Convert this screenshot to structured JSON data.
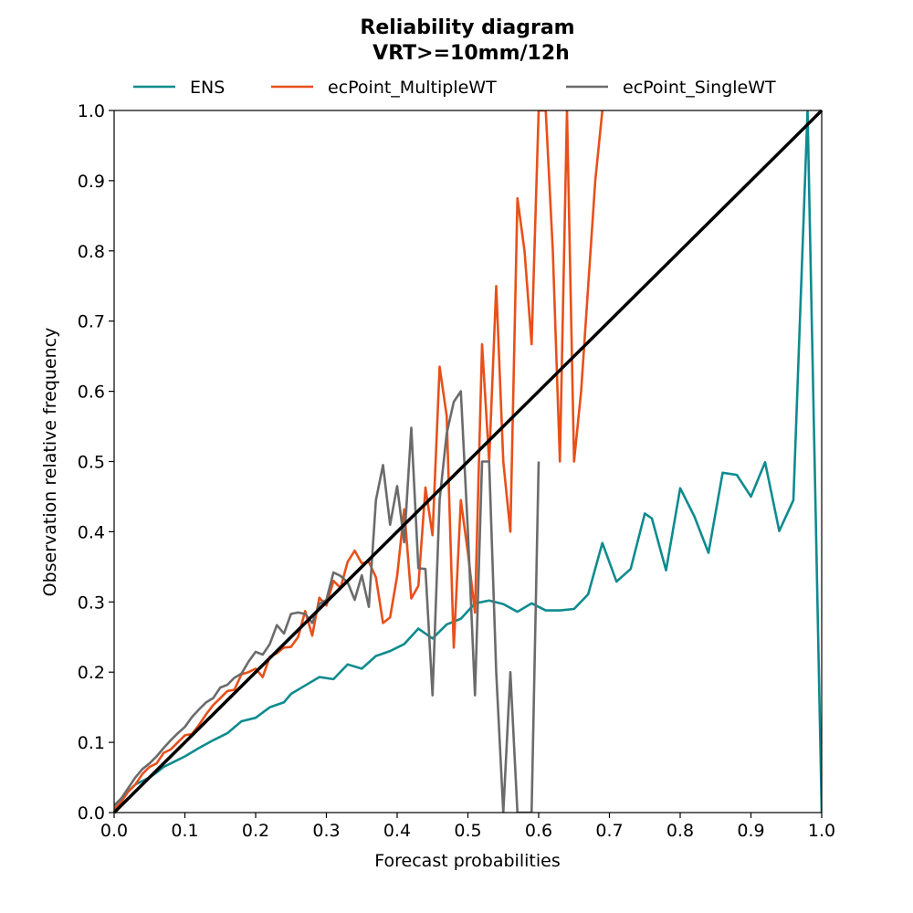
{
  "chart_data": {
    "type": "line",
    "title": "Reliability diagram",
    "subtitle": "VRT>=10mm/12h",
    "xlabel": "Forecast probabilities",
    "ylabel": "Observation relative frequency",
    "xlim": [
      0,
      1
    ],
    "ylim": [
      0,
      1
    ],
    "xticks": [
      "0.0",
      "0.1",
      "0.2",
      "0.3",
      "0.4",
      "0.5",
      "0.6",
      "0.7",
      "0.8",
      "0.9",
      "1.0"
    ],
    "yticks": [
      "0.0",
      "0.1",
      "0.2",
      "0.3",
      "0.4",
      "0.5",
      "0.6",
      "0.7",
      "0.8",
      "0.9",
      "1.0"
    ],
    "grid": false,
    "legend": "top-center",
    "diagonal": {
      "color": "#000000"
    },
    "series": [
      {
        "name": "ENS",
        "color": "#0e8b8f",
        "x": [
          0.0,
          0.01,
          0.02,
          0.03,
          0.04,
          0.05,
          0.06,
          0.07,
          0.08,
          0.09,
          0.1,
          0.12,
          0.14,
          0.16,
          0.18,
          0.2,
          0.22,
          0.24,
          0.25,
          0.27,
          0.29,
          0.31,
          0.33,
          0.35,
          0.37,
          0.39,
          0.41,
          0.43,
          0.45,
          0.47,
          0.49,
          0.51,
          0.53,
          0.55,
          0.57,
          0.59,
          0.61,
          0.63,
          0.65,
          0.67,
          0.69,
          0.71,
          0.73,
          0.75,
          0.76,
          0.78,
          0.8,
          0.82,
          0.84,
          0.86,
          0.88,
          0.9,
          0.92,
          0.94,
          0.96,
          0.98,
          1.0
        ],
        "values": [
          0.01,
          0.02,
          0.03,
          0.04,
          0.045,
          0.05,
          0.057,
          0.065,
          0.07,
          0.075,
          0.08,
          0.092,
          0.103,
          0.113,
          0.13,
          0.135,
          0.15,
          0.157,
          0.169,
          0.181,
          0.193,
          0.19,
          0.211,
          0.205,
          0.223,
          0.23,
          0.24,
          0.262,
          0.248,
          0.268,
          0.276,
          0.298,
          0.302,
          0.297,
          0.286,
          0.298,
          0.288,
          0.288,
          0.29,
          0.311,
          0.384,
          0.329,
          0.347,
          0.426,
          0.419,
          0.345,
          0.462,
          0.422,
          0.37,
          0.484,
          0.481,
          0.45,
          0.499,
          0.401,
          0.445,
          1.0,
          0.0
        ]
      },
      {
        "name": "ecPoint_MultipleWT",
        "color": "#e8501a",
        "x": [
          0.0,
          0.01,
          0.02,
          0.03,
          0.04,
          0.05,
          0.06,
          0.07,
          0.08,
          0.09,
          0.1,
          0.11,
          0.12,
          0.13,
          0.14,
          0.15,
          0.16,
          0.17,
          0.18,
          0.19,
          0.2,
          0.21,
          0.22,
          0.23,
          0.24,
          0.25,
          0.26,
          0.27,
          0.28,
          0.29,
          0.3,
          0.31,
          0.32,
          0.33,
          0.34,
          0.35,
          0.36,
          0.37,
          0.38,
          0.39,
          0.4,
          0.41,
          0.42,
          0.43,
          0.44,
          0.45,
          0.46,
          0.47,
          0.48,
          0.49,
          0.5,
          0.51,
          0.52,
          0.53,
          0.54,
          0.55,
          0.56,
          0.57,
          0.58,
          0.59,
          0.6,
          0.61,
          0.62,
          0.63,
          0.64,
          0.65,
          0.66,
          0.67,
          0.68,
          0.69
        ],
        "values": [
          0.005,
          0.015,
          0.03,
          0.04,
          0.055,
          0.065,
          0.07,
          0.085,
          0.09,
          0.1,
          0.11,
          0.112,
          0.125,
          0.14,
          0.153,
          0.163,
          0.173,
          0.175,
          0.197,
          0.2,
          0.205,
          0.193,
          0.222,
          0.227,
          0.235,
          0.236,
          0.25,
          0.287,
          0.252,
          0.306,
          0.295,
          0.33,
          0.32,
          0.357,
          0.373,
          0.355,
          0.357,
          0.335,
          0.27,
          0.278,
          0.337,
          0.432,
          0.305,
          0.323,
          0.463,
          0.395,
          0.635,
          0.565,
          0.235,
          0.445,
          0.37,
          0.285,
          0.667,
          0.5,
          0.75,
          0.5,
          0.4,
          0.875,
          0.8,
          0.667,
          1.0,
          1.0,
          0.8,
          0.5,
          1.0,
          0.5,
          0.6,
          0.75,
          0.9,
          1.0
        ]
      },
      {
        "name": "ecPoint_SingleWT",
        "color": "#6b6b6b",
        "x": [
          0.0,
          0.01,
          0.02,
          0.03,
          0.04,
          0.05,
          0.06,
          0.07,
          0.08,
          0.09,
          0.1,
          0.11,
          0.12,
          0.13,
          0.14,
          0.15,
          0.16,
          0.17,
          0.18,
          0.19,
          0.2,
          0.21,
          0.22,
          0.23,
          0.24,
          0.25,
          0.26,
          0.27,
          0.28,
          0.29,
          0.3,
          0.31,
          0.32,
          0.33,
          0.34,
          0.35,
          0.36,
          0.37,
          0.38,
          0.39,
          0.4,
          0.41,
          0.42,
          0.43,
          0.44,
          0.45,
          0.46,
          0.47,
          0.48,
          0.49,
          0.5,
          0.51,
          0.52,
          0.53,
          0.54,
          0.55,
          0.56,
          0.57,
          0.58,
          0.59,
          0.6
        ],
        "values": [
          0.01,
          0.02,
          0.035,
          0.05,
          0.062,
          0.07,
          0.08,
          0.092,
          0.103,
          0.113,
          0.122,
          0.136,
          0.147,
          0.157,
          0.163,
          0.178,
          0.182,
          0.192,
          0.198,
          0.215,
          0.229,
          0.225,
          0.24,
          0.267,
          0.255,
          0.283,
          0.285,
          0.283,
          0.27,
          0.297,
          0.303,
          0.342,
          0.337,
          0.328,
          0.303,
          0.338,
          0.293,
          0.445,
          0.495,
          0.41,
          0.465,
          0.385,
          0.548,
          0.348,
          0.347,
          0.167,
          0.445,
          0.54,
          0.585,
          0.6,
          0.4,
          0.167,
          0.5,
          0.5,
          0.2,
          0.0,
          0.2,
          0.0,
          0.0,
          0.0,
          0.5
        ]
      }
    ]
  }
}
